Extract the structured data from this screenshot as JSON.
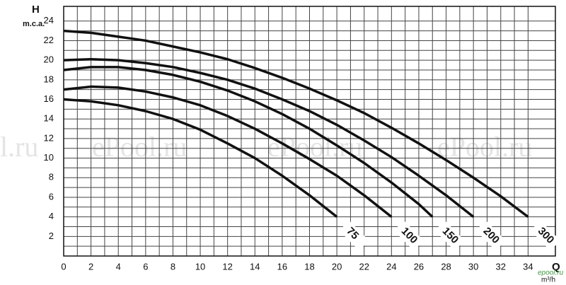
{
  "chart_data": {
    "type": "line",
    "y_label": "H",
    "y_unit": "m.c.a.",
    "x_label": "Q",
    "x_unit": "m³/h",
    "watermarks": [
      "l.ru",
      "ePool.ru",
      "ePool.ru",
      "ePool.ru"
    ],
    "logo": "epool.ru",
    "xlim": [
      0,
      36
    ],
    "ylim": [
      0,
      25.5
    ],
    "xticks": [
      0,
      2,
      4,
      6,
      8,
      10,
      12,
      14,
      16,
      18,
      20,
      22,
      24,
      26,
      28,
      30,
      32,
      34
    ],
    "yticks": [
      2,
      4,
      6,
      8,
      10,
      12,
      14,
      16,
      18,
      20,
      22,
      24
    ],
    "grid": true,
    "minor_grid": true,
    "series": [
      {
        "name": "75",
        "color": "#111111",
        "x": [
          0,
          2,
          4,
          6,
          8,
          10,
          12,
          14,
          16,
          18,
          20
        ],
        "values": [
          16,
          15.8,
          15.4,
          14.8,
          14.0,
          12.9,
          11.5,
          10.0,
          8.2,
          6.2,
          4
        ]
      },
      {
        "name": "100",
        "color": "#111111",
        "x": [
          0,
          2,
          4,
          6,
          8,
          10,
          12,
          14,
          16,
          18,
          20,
          22,
          24
        ],
        "values": [
          17,
          17.3,
          17.2,
          16.8,
          16.2,
          15.4,
          14.3,
          13.0,
          11.5,
          9.9,
          8.2,
          6.2,
          4
        ]
      },
      {
        "name": "150",
        "color": "#111111",
        "x": [
          0,
          2,
          4,
          6,
          8,
          10,
          12,
          14,
          16,
          18,
          20,
          22,
          24,
          26,
          27
        ],
        "values": [
          19,
          19.3,
          19.3,
          19.0,
          18.5,
          17.8,
          16.9,
          15.8,
          14.5,
          13.0,
          11.3,
          9.5,
          7.5,
          5.3,
          4
        ]
      },
      {
        "name": "200",
        "color": "#111111",
        "x": [
          0,
          2,
          4,
          6,
          8,
          10,
          12,
          14,
          16,
          18,
          20,
          22,
          24,
          26,
          28,
          30
        ],
        "values": [
          20,
          20.1,
          20.0,
          19.7,
          19.3,
          18.7,
          18.0,
          17.1,
          16.0,
          14.8,
          13.4,
          11.8,
          10.1,
          8.2,
          6.2,
          4
        ]
      },
      {
        "name": "300",
        "color": "#111111",
        "x": [
          0,
          2,
          4,
          6,
          8,
          10,
          12,
          14,
          16,
          18,
          20,
          22,
          24,
          26,
          28,
          30,
          32,
          34
        ],
        "values": [
          23,
          22.8,
          22.4,
          22.0,
          21.4,
          20.8,
          20.1,
          19.2,
          18.2,
          17.1,
          15.9,
          14.6,
          13.1,
          11.5,
          9.8,
          8.0,
          6.1,
          4
        ]
      }
    ]
  }
}
